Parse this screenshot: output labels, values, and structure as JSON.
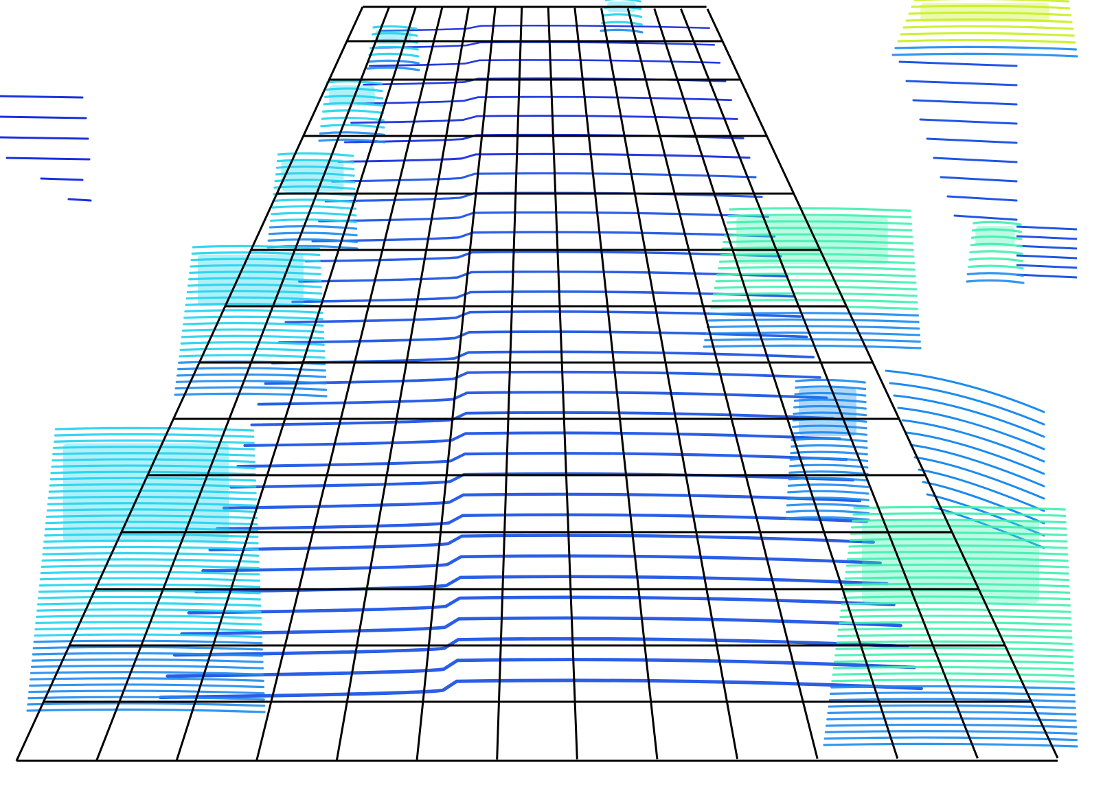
{
  "scene": {
    "type": "lidar-point-cloud-bev-grid",
    "grid": {
      "color": "#000000",
      "columns": 13,
      "rows": 13
    },
    "palette": {
      "ground": "#1f55e6",
      "ground_far": "#1a2fe0",
      "low_object": "#1c8bf0",
      "mid_object": "#1fd3ee",
      "high_object": "#3ef0b0",
      "top_object": "#c8f020"
    },
    "objects": [
      {
        "name": "parked-car-far-left-1",
        "color_key": "mid_object"
      },
      {
        "name": "parked-car-far-left-2",
        "color_key": "mid_object"
      },
      {
        "name": "parked-car-left-mid",
        "color_key": "mid_object"
      },
      {
        "name": "parked-car-left-near",
        "color_key": "mid_object"
      },
      {
        "name": "parked-car-left-front",
        "color_key": "mid_object"
      },
      {
        "name": "parked-car-right-far",
        "color_key": "mid_object"
      },
      {
        "name": "parked-truck-right-mid",
        "color_key": "high_object"
      },
      {
        "name": "parked-car-right-near",
        "color_key": "low_object"
      },
      {
        "name": "vehicle-right-front",
        "color_key": "high_object"
      },
      {
        "name": "pole-right",
        "color_key": "high_object"
      },
      {
        "name": "vegetation-top-right",
        "color_key": "top_object"
      }
    ]
  }
}
